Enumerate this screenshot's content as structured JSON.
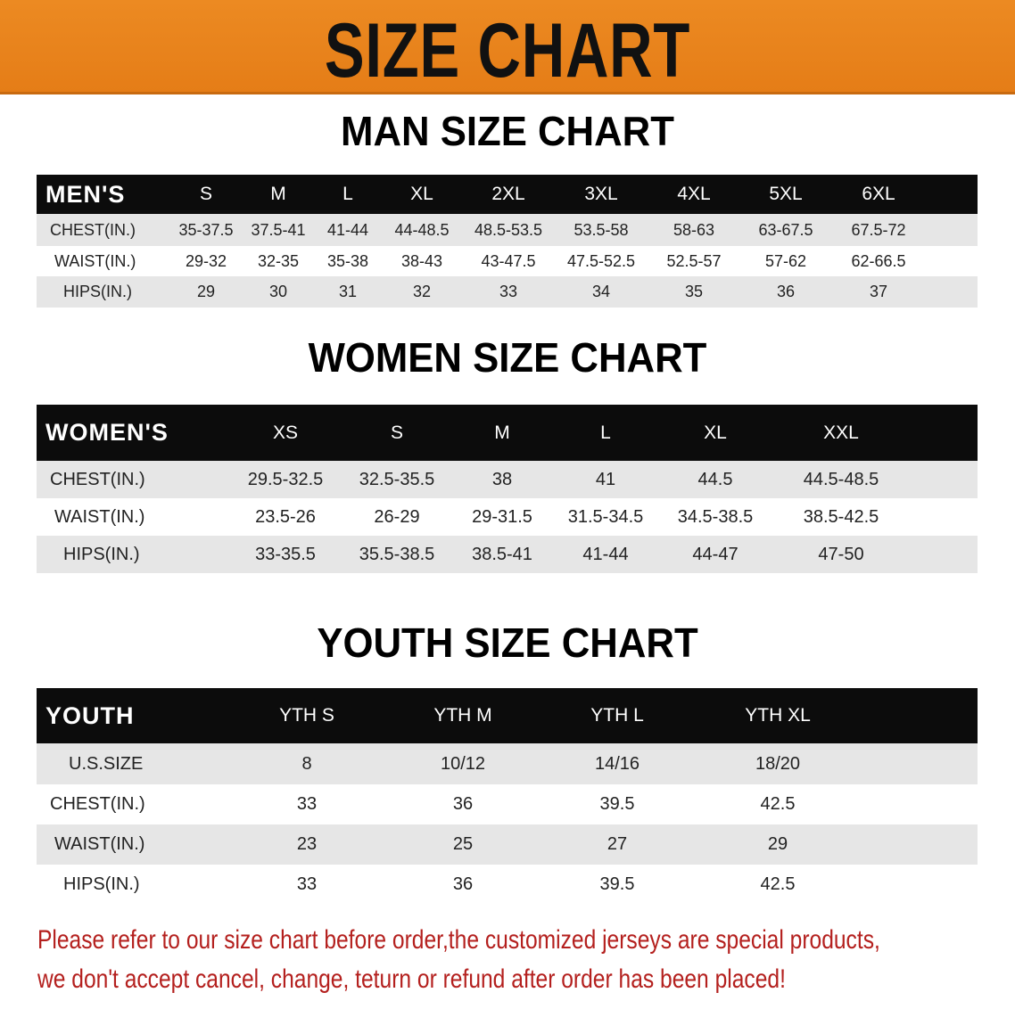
{
  "banner_title": "SIZE CHART",
  "colors": {
    "banner": "#e8801e",
    "header_row": "#0c0c0c",
    "stripe": "#e6e6e6",
    "note": "#b4201e"
  },
  "men": {
    "title": "MAN SIZE CHART",
    "header": [
      "MEN'S",
      "S",
      "M",
      "L",
      "XL",
      "2XL",
      "3XL",
      "4XL",
      "5XL",
      "6XL"
    ],
    "rows": [
      [
        "CHEST(IN.)",
        "35-37.5",
        "37.5-41",
        "41-44",
        "44-48.5",
        "48.5-53.5",
        "53.5-58",
        "58-63",
        "63-67.5",
        "67.5-72"
      ],
      [
        "WAIST(IN.)",
        "29-32",
        "32-35",
        "35-38",
        "38-43",
        "43-47.5",
        "47.5-52.5",
        "52.5-57",
        "57-62",
        "62-66.5"
      ],
      [
        "HIPS(IN.)",
        "29",
        "30",
        "31",
        "32",
        "33",
        "34",
        "35",
        "36",
        "37"
      ]
    ]
  },
  "women": {
    "title": "WOMEN SIZE CHART",
    "header": [
      "WOMEN'S",
      "XS",
      "S",
      "M",
      "L",
      "XL",
      "XXL"
    ],
    "rows": [
      [
        "CHEST(IN.)",
        "29.5-32.5",
        "32.5-35.5",
        "38",
        "41",
        "44.5",
        "44.5-48.5"
      ],
      [
        "WAIST(IN.)",
        "23.5-26",
        "26-29",
        "29-31.5",
        "31.5-34.5",
        "34.5-38.5",
        "38.5-42.5"
      ],
      [
        "HIPS(IN.)",
        "33-35.5",
        "35.5-38.5",
        "38.5-41",
        "41-44",
        "44-47",
        "47-50"
      ]
    ]
  },
  "youth": {
    "title": "YOUTH SIZE CHART",
    "header": [
      "YOUTH",
      "YTH S",
      "YTH M",
      "YTH L",
      "YTH XL"
    ],
    "rows": [
      [
        "U.S.SIZE",
        "8",
        "10/12",
        "14/16",
        "18/20"
      ],
      [
        "CHEST(IN.)",
        "33",
        "36",
        "39.5",
        "42.5"
      ],
      [
        "WAIST(IN.)",
        "23",
        "25",
        "27",
        "29"
      ],
      [
        "HIPS(IN.)",
        "33",
        "36",
        "39.5",
        "42.5"
      ]
    ]
  },
  "note": {
    "line1": "Please refer to our size chart before order,the customized jerseys are special products,",
    "line2": "we don't accept cancel, change, teturn or refund after order has been placed!"
  }
}
